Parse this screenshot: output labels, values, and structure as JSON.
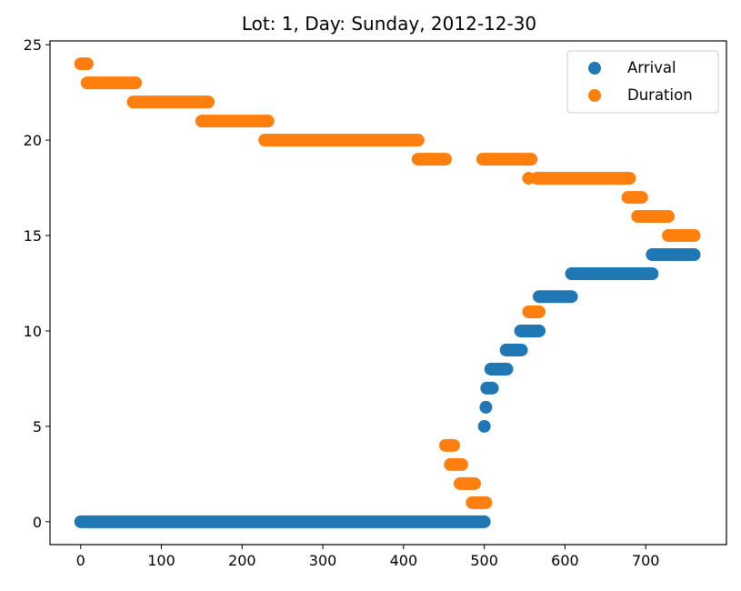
{
  "chart_data": {
    "type": "scatter",
    "title": "Lot: 1, Day: Sunday, 2012-12-30",
    "xlabel": "",
    "ylabel": "",
    "xlim": [
      -38,
      800
    ],
    "ylim": [
      -1.2,
      25.2
    ],
    "xticks": [
      0,
      100,
      200,
      300,
      400,
      500,
      600,
      700
    ],
    "yticks": [
      0,
      5,
      10,
      15,
      20,
      25
    ],
    "grid": false,
    "legend_position": "top-right",
    "series": [
      {
        "name": "Arrival",
        "color": "#1f77b4",
        "segments": [
          {
            "x0": 0,
            "x1": 500,
            "y": 0
          },
          {
            "x0": 500,
            "x1": 500,
            "y": 5
          },
          {
            "x0": 502,
            "x1": 502,
            "y": 6
          },
          {
            "x0": 503,
            "x1": 510,
            "y": 7
          },
          {
            "x0": 508,
            "x1": 528,
            "y": 8
          },
          {
            "x0": 527,
            "x1": 546,
            "y": 9
          },
          {
            "x0": 545,
            "x1": 568,
            "y": 10
          },
          {
            "x0": 568,
            "x1": 608,
            "y": 11.8
          },
          {
            "x0": 608,
            "x1": 708,
            "y": 13
          },
          {
            "x0": 708,
            "x1": 760,
            "y": 14
          }
        ]
      },
      {
        "name": "Duration",
        "color": "#ff7f0e",
        "segments": [
          {
            "x0": 0,
            "x1": 8,
            "y": 24
          },
          {
            "x0": 8,
            "x1": 68,
            "y": 23
          },
          {
            "x0": 65,
            "x1": 158,
            "y": 22
          },
          {
            "x0": 150,
            "x1": 232,
            "y": 21
          },
          {
            "x0": 228,
            "x1": 418,
            "y": 20
          },
          {
            "x0": 418,
            "x1": 452,
            "y": 19
          },
          {
            "x0": 498,
            "x1": 558,
            "y": 19
          },
          {
            "x0": 555,
            "x1": 555,
            "y": 18
          },
          {
            "x0": 565,
            "x1": 680,
            "y": 18
          },
          {
            "x0": 678,
            "x1": 695,
            "y": 17
          },
          {
            "x0": 690,
            "x1": 728,
            "y": 16
          },
          {
            "x0": 728,
            "x1": 760,
            "y": 15
          },
          {
            "x0": 555,
            "x1": 568,
            "y": 11
          },
          {
            "x0": 452,
            "x1": 462,
            "y": 4
          },
          {
            "x0": 458,
            "x1": 472,
            "y": 3
          },
          {
            "x0": 470,
            "x1": 488,
            "y": 2
          },
          {
            "x0": 485,
            "x1": 502,
            "y": 1
          }
        ]
      }
    ]
  }
}
